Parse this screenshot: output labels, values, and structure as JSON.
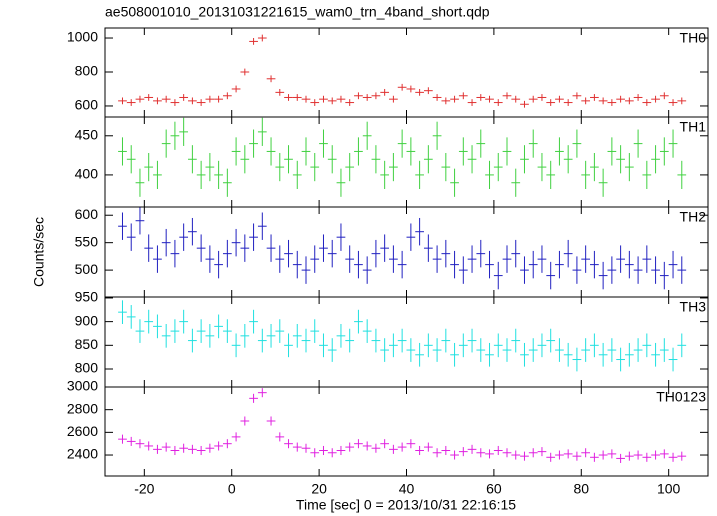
{
  "chart_data": [
    {
      "type": "line",
      "title": "ae508001010_20131031221615_wam0_trn_4band_short.qdp",
      "label": "TH0",
      "color": "#e03030",
      "error": 20,
      "x": [
        -25,
        -23,
        -21,
        -19,
        -17,
        -15,
        -13,
        -11,
        -9,
        -7,
        -5,
        -3,
        -1,
        1,
        3,
        5,
        7,
        9,
        11,
        13,
        15,
        17,
        19,
        21,
        23,
        25,
        27,
        29,
        31,
        33,
        35,
        37,
        39,
        41,
        43,
        45,
        47,
        49,
        51,
        53,
        55,
        57,
        59,
        61,
        63,
        65,
        67,
        69,
        71,
        73,
        75,
        77,
        79,
        81,
        83,
        85,
        87,
        89,
        91,
        93,
        95,
        97,
        99,
        101,
        103
      ],
      "values": [
        630,
        620,
        640,
        650,
        630,
        640,
        620,
        650,
        630,
        620,
        640,
        640,
        660,
        700,
        800,
        980,
        1000,
        760,
        680,
        650,
        650,
        640,
        620,
        640,
        630,
        640,
        620,
        660,
        650,
        660,
        680,
        640,
        710,
        700,
        680,
        690,
        650,
        630,
        640,
        660,
        620,
        650,
        640,
        620,
        660,
        640,
        610,
        640,
        650,
        620,
        640,
        620,
        660,
        630,
        650,
        630,
        620,
        640,
        630,
        650,
        620,
        640,
        660,
        620,
        630
      ],
      "xlim": [
        -29,
        109
      ],
      "xticks": [
        -20,
        0,
        20,
        40,
        60,
        80,
        100
      ],
      "ylim": [
        535,
        1059
      ],
      "yticks": [
        600,
        800,
        1000
      ]
    },
    {
      "type": "line",
      "label": "TH1",
      "color": "#40d040",
      "error": 18,
      "x": [
        -25,
        -23,
        -21,
        -19,
        -17,
        -15,
        -13,
        -11,
        -9,
        -7,
        -5,
        -3,
        -1,
        1,
        3,
        5,
        7,
        9,
        11,
        13,
        15,
        17,
        19,
        21,
        23,
        25,
        27,
        29,
        31,
        33,
        35,
        37,
        39,
        41,
        43,
        45,
        47,
        49,
        51,
        53,
        55,
        57,
        59,
        61,
        63,
        65,
        67,
        69,
        71,
        73,
        75,
        77,
        79,
        81,
        83,
        85,
        87,
        89,
        91,
        93,
        95,
        97,
        99,
        101,
        103
      ],
      "values": [
        430,
        420,
        390,
        410,
        400,
        440,
        450,
        455,
        420,
        400,
        410,
        400,
        390,
        430,
        420,
        440,
        455,
        430,
        410,
        420,
        400,
        430,
        410,
        440,
        420,
        390,
        410,
        430,
        450,
        420,
        400,
        410,
        440,
        430,
        400,
        420,
        450,
        410,
        390,
        430,
        420,
        440,
        400,
        410,
        430,
        390,
        420,
        440,
        410,
        400,
        430,
        420,
        440,
        400,
        410,
        390,
        430,
        420,
        410,
        440,
        400,
        420,
        430,
        440,
        400
      ],
      "xlim": [
        -29,
        109
      ],
      "xticks": [
        -20,
        0,
        20,
        40,
        60,
        80,
        100
      ],
      "ylim": [
        359,
        474
      ],
      "yticks": [
        400,
        450
      ]
    },
    {
      "type": "line",
      "label": "TH2",
      "color": "#2020c0",
      "error": 25,
      "ylabel": "Counts/sec",
      "x": [
        -25,
        -23,
        -21,
        -19,
        -17,
        -15,
        -13,
        -11,
        -9,
        -7,
        -5,
        -3,
        -1,
        1,
        3,
        5,
        7,
        9,
        11,
        13,
        15,
        17,
        19,
        21,
        23,
        25,
        27,
        29,
        31,
        33,
        35,
        37,
        39,
        41,
        43,
        45,
        47,
        49,
        51,
        53,
        55,
        57,
        59,
        61,
        63,
        65,
        67,
        69,
        71,
        73,
        75,
        77,
        79,
        81,
        83,
        85,
        87,
        89,
        91,
        93,
        95,
        97,
        99,
        101,
        103
      ],
      "values": [
        580,
        560,
        590,
        540,
        520,
        550,
        530,
        560,
        570,
        540,
        520,
        510,
        530,
        550,
        540,
        560,
        580,
        540,
        520,
        530,
        510,
        500,
        520,
        540,
        530,
        560,
        520,
        510,
        500,
        530,
        540,
        520,
        510,
        560,
        570,
        540,
        520,
        530,
        510,
        500,
        520,
        530,
        510,
        490,
        520,
        530,
        500,
        510,
        520,
        490,
        510,
        530,
        500,
        520,
        510,
        490,
        500,
        520,
        510,
        500,
        520,
        500,
        490,
        510,
        500
      ],
      "xlim": [
        -29,
        109
      ],
      "xticks": [
        -20,
        0,
        20,
        40,
        60,
        80,
        100
      ],
      "ylim": [
        451,
        615
      ],
      "yticks": [
        500,
        550,
        600
      ]
    },
    {
      "type": "line",
      "label": "TH3",
      "color": "#20e0e0",
      "error": 25,
      "x": [
        -25,
        -23,
        -21,
        -19,
        -17,
        -15,
        -13,
        -11,
        -9,
        -7,
        -5,
        -3,
        -1,
        1,
        3,
        5,
        7,
        9,
        11,
        13,
        15,
        17,
        19,
        21,
        23,
        25,
        27,
        29,
        31,
        33,
        35,
        37,
        39,
        41,
        43,
        45,
        47,
        49,
        51,
        53,
        55,
        57,
        59,
        61,
        63,
        65,
        67,
        69,
        71,
        73,
        75,
        77,
        79,
        81,
        83,
        85,
        87,
        89,
        91,
        93,
        95,
        97,
        99,
        101,
        103
      ],
      "values": [
        920,
        910,
        880,
        900,
        890,
        870,
        880,
        900,
        860,
        880,
        870,
        890,
        880,
        850,
        870,
        900,
        860,
        870,
        880,
        850,
        870,
        860,
        880,
        850,
        840,
        870,
        860,
        900,
        880,
        860,
        840,
        850,
        860,
        840,
        830,
        850,
        840,
        860,
        830,
        850,
        860,
        840,
        830,
        850,
        840,
        860,
        830,
        840,
        850,
        860,
        840,
        830,
        820,
        840,
        850,
        830,
        840,
        820,
        830,
        840,
        850,
        830,
        840,
        820,
        850
      ],
      "xlim": [
        -29,
        109
      ],
      "xticks": [
        -20,
        0,
        20,
        40,
        60,
        80,
        100
      ],
      "ylim": [
        762,
        952
      ],
      "yticks": [
        800,
        850,
        900,
        950
      ]
    },
    {
      "type": "line",
      "label": "TH0123",
      "color": "#e020e0",
      "error": 40,
      "xlabel": "Time [sec] 0 = 2013/10/31 22:16:15",
      "x": [
        -25,
        -23,
        -21,
        -19,
        -17,
        -15,
        -13,
        -11,
        -9,
        -7,
        -5,
        -3,
        -1,
        1,
        3,
        5,
        7,
        9,
        11,
        13,
        15,
        17,
        19,
        21,
        23,
        25,
        27,
        29,
        31,
        33,
        35,
        37,
        39,
        41,
        43,
        45,
        47,
        49,
        51,
        53,
        55,
        57,
        59,
        61,
        63,
        65,
        67,
        69,
        71,
        73,
        75,
        77,
        79,
        81,
        83,
        85,
        87,
        89,
        91,
        93,
        95,
        97,
        99,
        101,
        103
      ],
      "values": [
        2540,
        2520,
        2500,
        2480,
        2450,
        2470,
        2440,
        2460,
        2450,
        2440,
        2460,
        2480,
        2500,
        2560,
        2700,
        2900,
        2950,
        2700,
        2560,
        2500,
        2470,
        2460,
        2420,
        2440,
        2420,
        2440,
        2470,
        2500,
        2480,
        2460,
        2500,
        2450,
        2470,
        2500,
        2440,
        2470,
        2420,
        2440,
        2400,
        2430,
        2450,
        2420,
        2410,
        2440,
        2420,
        2400,
        2390,
        2420,
        2430,
        2380,
        2400,
        2410,
        2390,
        2420,
        2380,
        2400,
        2410,
        2370,
        2390,
        2400,
        2380,
        2400,
        2410,
        2380,
        2390
      ],
      "xlim": [
        -29,
        109
      ],
      "xticks": [
        -20,
        0,
        20,
        40,
        60,
        80,
        100
      ],
      "ylim": [
        2215,
        3000
      ],
      "yticks": [
        2400,
        2600,
        2800,
        3000
      ]
    }
  ]
}
